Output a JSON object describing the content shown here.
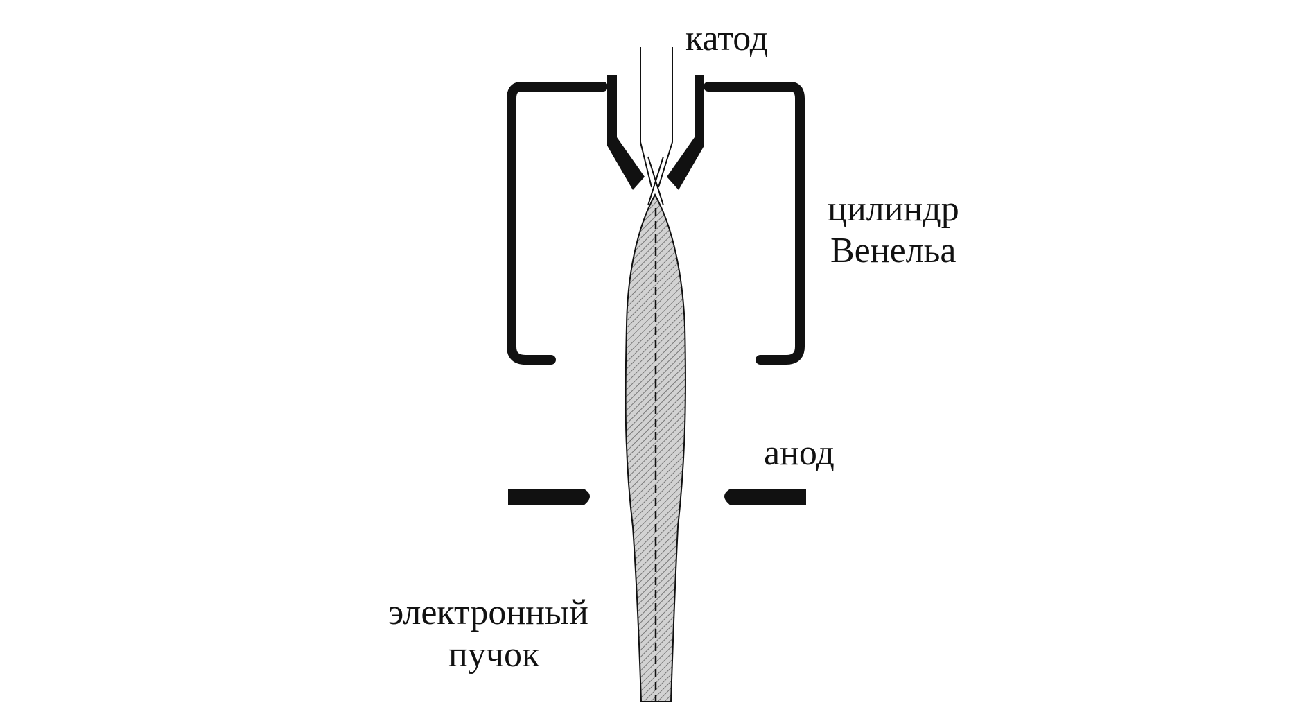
{
  "labels": {
    "cathode": "катод",
    "wehnelt_line1": "цилиндр",
    "wehnelt_line2": "Венельа",
    "anode": "анод",
    "beam_line1": "электронный",
    "beam_line2": "пучок"
  },
  "colors": {
    "stroke": "#111111",
    "beam_fill": "#b8b8b8",
    "background": "#ffffff"
  }
}
